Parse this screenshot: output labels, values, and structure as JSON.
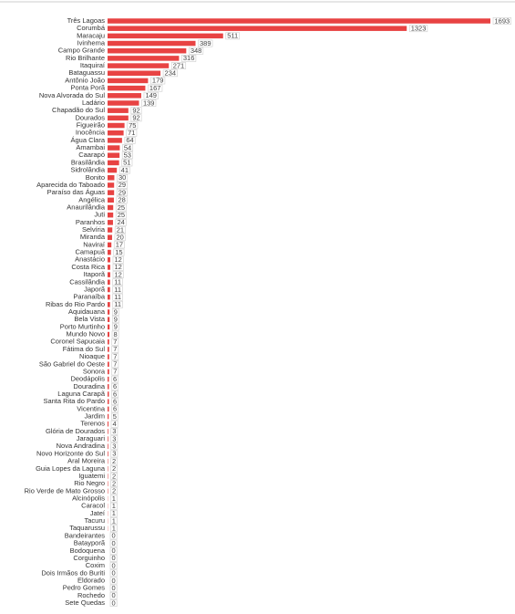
{
  "chart_data": {
    "type": "bar",
    "orientation": "horizontal",
    "color": "#e84343",
    "categories": [
      "Três Lagoas",
      "Corumbá",
      "Maracaju",
      "Ivinhema",
      "Campo Grande",
      "Rio Brilhante",
      "Itaquiraí",
      "Bataguassu",
      "Antônio João",
      "Ponta Porã",
      "Nova Alvorada do Sul",
      "Ladário",
      "Chapadão do Sul",
      "Dourados",
      "Figueirão",
      "Inocência",
      "Água Clara",
      "Amambai",
      "Caarapó",
      "Brasilândia",
      "Sidrolândia",
      "Bonito",
      "Aparecida do Taboado",
      "Paraíso das Águas",
      "Angélica",
      "Anaurilândia",
      "Juti",
      "Paranhos",
      "Selvíria",
      "Miranda",
      "Naviraí",
      "Camapuã",
      "Anastácio",
      "Costa Rica",
      "Itaporã",
      "Cassilândia",
      "Japorã",
      "Paranaíba",
      "Ribas do Rio Pardo",
      "Aquidauana",
      "Bela Vista",
      "Porto Murtinho",
      "Mundo Novo",
      "Coronel Sapucaia",
      "Fátima do Sul",
      "Nioaque",
      "São Gabriel do Oeste",
      "Sonora",
      "Deodápolis",
      "Douradina",
      "Laguna Carapã",
      "Santa Rita do Pardo",
      "Vicentina",
      "Jardim",
      "Terenos",
      "Glória de Dourados",
      "Jaraguari",
      "Nova Andradina",
      "Novo Horizonte do Sul",
      "Aral Moreira",
      "Guia Lopes da Laguna",
      "Iguatemi",
      "Rio Negro",
      "Rio Verde de Mato Grosso",
      "Alcinópolis",
      "Caracol",
      "Jateí",
      "Tacuru",
      "Taquarussu",
      "Bandeirantes",
      "Batayporã",
      "Bodoquena",
      "Corguinho",
      "Coxim",
      "Dois Irmãos do Buriti",
      "Eldorado",
      "Pedro Gomes",
      "Rochedo",
      "Sete Quedas"
    ],
    "values": [
      1693,
      1323,
      511,
      389,
      348,
      316,
      271,
      234,
      179,
      167,
      149,
      139,
      92,
      92,
      75,
      71,
      64,
      54,
      53,
      51,
      41,
      30,
      29,
      29,
      28,
      25,
      25,
      24,
      21,
      20,
      17,
      15,
      12,
      12,
      12,
      11,
      11,
      11,
      11,
      9,
      9,
      9,
      8,
      7,
      7,
      7,
      7,
      7,
      6,
      6,
      6,
      6,
      6,
      5,
      4,
      3,
      3,
      3,
      3,
      2,
      2,
      2,
      2,
      2,
      1,
      1,
      1,
      1,
      1,
      0,
      0,
      0,
      0,
      0,
      0,
      0,
      0,
      0,
      0
    ]
  }
}
